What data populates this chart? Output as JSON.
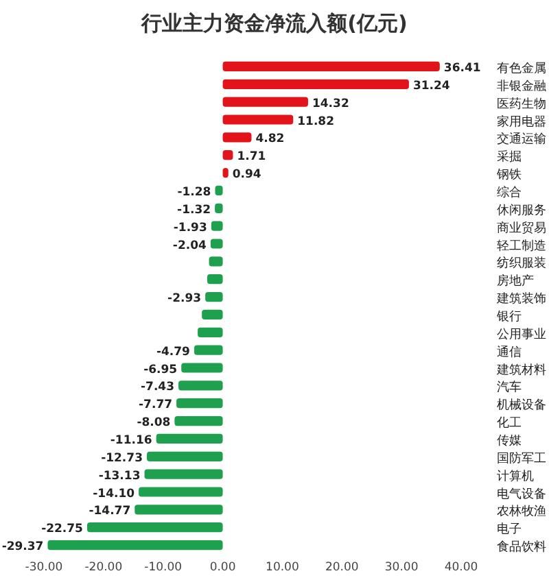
{
  "chart_data": {
    "type": "bar",
    "orientation": "horizontal",
    "title": "行业主力资金净流入额(亿元)",
    "categories": [
      "有色金属",
      "非银金融",
      "医药生物",
      "家用电器",
      "交通运输",
      "采掘",
      "钢铁",
      "综合",
      "休闲服务",
      "商业贸易",
      "轻工制造",
      "纺织服装",
      "房地产",
      "建筑装饰",
      "银行",
      "公用事业",
      "通信",
      "建筑材料",
      "汽车",
      "机械设备",
      "化工",
      "传媒",
      "国防军工",
      "计算机",
      "电气设备",
      "农林牧渔",
      "电子",
      "食品饮料"
    ],
    "values": [
      36.41,
      31.24,
      14.32,
      11.82,
      4.82,
      1.71,
      0.94,
      -1.28,
      -1.32,
      -1.93,
      -2.04,
      -2.3,
      -2.6,
      -2.93,
      -3.5,
      -4.2,
      -4.79,
      -6.95,
      -7.43,
      -7.77,
      -8.08,
      -11.16,
      -12.73,
      -13.13,
      -14.1,
      -14.77,
      -22.75,
      -29.37
    ],
    "value_labels": [
      "36.41",
      "31.24",
      "14.32",
      "11.82",
      "4.82",
      "1.71",
      "0.94",
      "-1.28",
      "-1.32",
      "-1.93",
      "-2.04",
      null,
      null,
      "-2.93",
      null,
      null,
      "-4.79",
      "-6.95",
      "-7.43",
      "-7.77",
      "-8.08",
      "-11.16",
      "-12.73",
      "-13.13",
      "-14.10",
      "-14.77",
      "-22.75",
      "-29.37"
    ],
    "colors": [
      "#e3131b",
      "#e3131b",
      "#e3131b",
      "#e3131b",
      "#e3131b",
      "#e3131b",
      "#e3131b",
      "#1fa04f",
      "#1fa04f",
      "#1fa04f",
      "#1fa04f",
      "#1fa04f",
      "#1fa04f",
      "#1fa04f",
      "#1fa04f",
      "#1fa04f",
      "#1fa04f",
      "#1fa04f",
      "#1fa04f",
      "#1fa04f",
      "#1fa04f",
      "#1fa04f",
      "#1fa04f",
      "#1fa04f",
      "#1fa04f",
      "#1fa04f",
      "#1fa04f",
      "#1fa04f"
    ],
    "xlim": [
      -30,
      40
    ],
    "xticks": [
      {
        "value": -30,
        "label": "-30.00"
      },
      {
        "value": -20,
        "label": "-20.00"
      },
      {
        "value": -10,
        "label": "-10.00"
      },
      {
        "value": 0,
        "label": "0.00"
      },
      {
        "value": 10,
        "label": "10.00"
      },
      {
        "value": 20,
        "label": "20.00"
      },
      {
        "value": 30,
        "label": "30.00"
      },
      {
        "value": 40,
        "label": "40.00"
      }
    ]
  }
}
